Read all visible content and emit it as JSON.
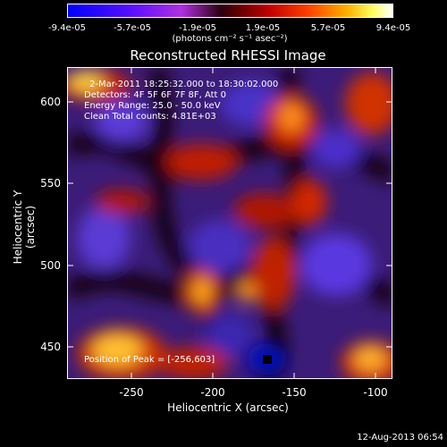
{
  "colorbar": {
    "ticks": [
      "-9.4e-05",
      "-5.7e-05",
      "-1.9e-05",
      "1.9e-05",
      "5.7e-05",
      "9.4e-05"
    ],
    "units_label": "(photons cm⁻² s⁻¹ asec⁻²)"
  },
  "title": "Reconstructed RHESSI Image",
  "info": {
    "line1": "2-Mar-2011 18:25:32.000 to 18:30:02.000",
    "line2": "Detectors: 4F 5F 6F 7F 8F, Att 0",
    "line3": "Energy Range: 25.0 - 50.0 keV",
    "line4": "Clean    Total counts: 4.81E+03",
    "peak": "Position of Peak = [-256,603]"
  },
  "axes": {
    "y_ticks": [
      "600",
      "550",
      "500",
      "450"
    ],
    "x_ticks": [
      "-250",
      "-200",
      "-150",
      "-100"
    ],
    "xlabel": "Heliocentric X (arcsec)",
    "ylabel": "Heliocentric Y (arcsec)"
  },
  "timestamp": "12-Aug-2013 06:54"
}
